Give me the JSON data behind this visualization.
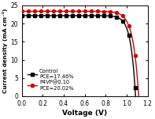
{
  "title": "",
  "xlabel": "Voltage (V)",
  "ylabel": "Current density (mA cm⁻²)",
  "xlim": [
    0.0,
    1.2
  ],
  "ylim": [
    0,
    25
  ],
  "xticks": [
    0.0,
    0.2,
    0.4,
    0.6,
    0.8,
    1.0,
    1.2
  ],
  "yticks": [
    0,
    5,
    10,
    15,
    20,
    25
  ],
  "control_color": "#000000",
  "p4vp_color": "#cc0000",
  "legend_control_line1": "Control",
  "legend_control_line2": "PCE=17.46%",
  "legend_p4vp_line1": "P4VP@0.10",
  "legend_p4vp_line2": "PCE=20.02%",
  "control_Jsc": 22.2,
  "control_Voc": 1.085,
  "control_n": 1.75,
  "p4vp_Jsc": 23.4,
  "p4vp_Voc": 1.115,
  "p4vp_n": 2.05
}
